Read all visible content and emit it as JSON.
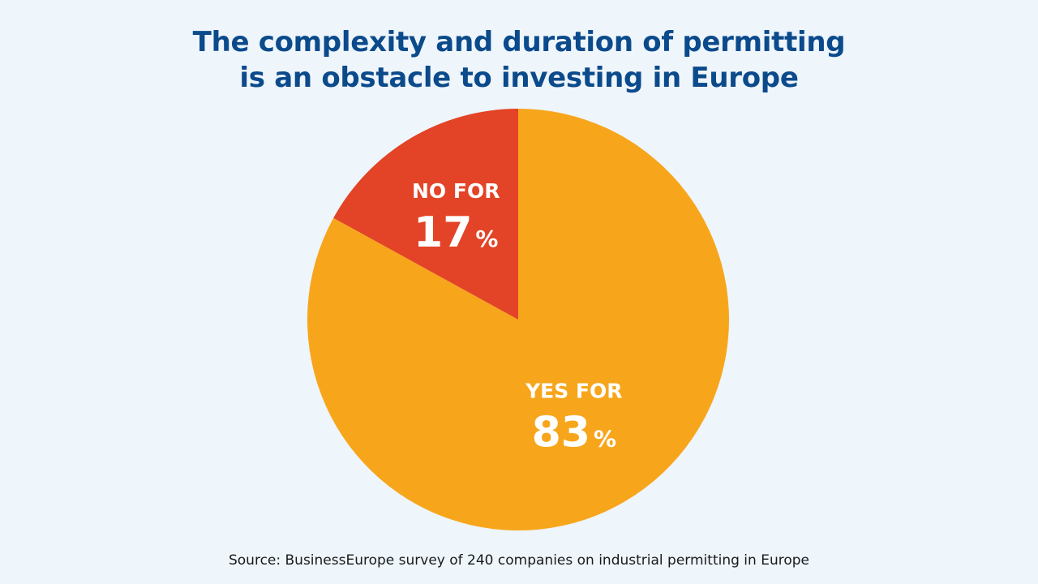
{
  "chart_data": {
    "type": "pie",
    "title_lines": [
      "The complexity and duration of permitting",
      "is an obstacle to investing in Europe"
    ],
    "slices": [
      {
        "name": "YES FOR",
        "value": 83,
        "value_text": "83",
        "unit": "%",
        "color": "#f7a61c"
      },
      {
        "name": "NO FOR",
        "value": 17,
        "value_text": "17",
        "unit": "%",
        "color": "#e34326"
      }
    ],
    "source": "Source: BusinessEurope survey of 240 companies on industrial permitting in Europe"
  }
}
